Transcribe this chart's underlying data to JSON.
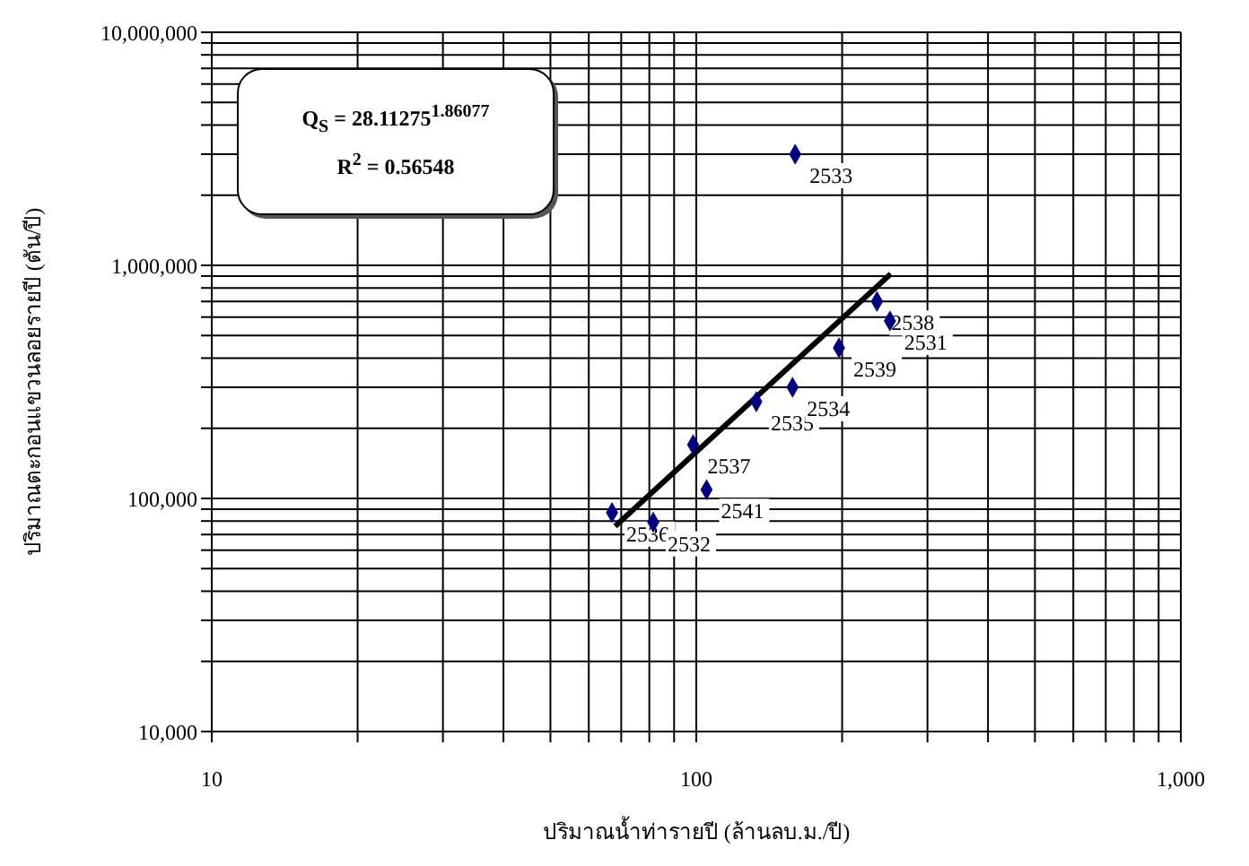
{
  "chart_data": {
    "type": "scatter",
    "log": "xy",
    "xlabel": "ปริมาณน้ำท่ารายปี (ล้านลบ.ม./ปี)",
    "ylabel": "ปริมาณตะกอนแขวนลอยรายปี (ตัน/ปี)",
    "xlim": [
      10,
      1000
    ],
    "ylim": [
      10000,
      10000000
    ],
    "xticks": [
      {
        "value": 10,
        "label": "10"
      },
      {
        "value": 20,
        "label": null
      },
      {
        "value": 30,
        "label": null
      },
      {
        "value": 40,
        "label": null
      },
      {
        "value": 50,
        "label": null
      },
      {
        "value": 60,
        "label": null
      },
      {
        "value": 70,
        "label": null
      },
      {
        "value": 80,
        "label": null
      },
      {
        "value": 90,
        "label": null
      },
      {
        "value": 100,
        "label": "100"
      },
      {
        "value": 200,
        "label": null
      },
      {
        "value": 300,
        "label": null
      },
      {
        "value": 400,
        "label": null
      },
      {
        "value": 500,
        "label": null
      },
      {
        "value": 600,
        "label": null
      },
      {
        "value": 700,
        "label": null
      },
      {
        "value": 800,
        "label": null
      },
      {
        "value": 900,
        "label": null
      },
      {
        "value": 1000,
        "label": "1,000"
      }
    ],
    "yticks": [
      {
        "value": 10000,
        "label": "10,000"
      },
      {
        "value": 20000,
        "label": null
      },
      {
        "value": 30000,
        "label": null
      },
      {
        "value": 40000,
        "label": null
      },
      {
        "value": 50000,
        "label": null
      },
      {
        "value": 60000,
        "label": null
      },
      {
        "value": 70000,
        "label": null
      },
      {
        "value": 80000,
        "label": null
      },
      {
        "value": 90000,
        "label": null
      },
      {
        "value": 100000,
        "label": "100,000"
      },
      {
        "value": 200000,
        "label": null
      },
      {
        "value": 300000,
        "label": null
      },
      {
        "value": 400000,
        "label": null
      },
      {
        "value": 500000,
        "label": null
      },
      {
        "value": 600000,
        "label": null
      },
      {
        "value": 700000,
        "label": null
      },
      {
        "value": 800000,
        "label": null
      },
      {
        "value": 900000,
        "label": null
      },
      {
        "value": 1000000,
        "label": "1,000,000"
      },
      {
        "value": 2000000,
        "label": null
      },
      {
        "value": 3000000,
        "label": null
      },
      {
        "value": 4000000,
        "label": null
      },
      {
        "value": 5000000,
        "label": null
      },
      {
        "value": 6000000,
        "label": null
      },
      {
        "value": 7000000,
        "label": null
      },
      {
        "value": 8000000,
        "label": null
      },
      {
        "value": 9000000,
        "label": null
      },
      {
        "value": 10000000,
        "label": "10,000,000"
      }
    ],
    "grid": true,
    "legend": false,
    "series": [
      {
        "marker": "diamond",
        "color": "#000080",
        "x": [
          67,
          81.5,
          98.5,
          105,
          133,
          158,
          160,
          197,
          236,
          251
        ],
        "values": [
          87000,
          79000,
          170000,
          109000,
          260000,
          300000,
          3000000,
          443000,
          700000,
          578000
        ]
      },
      {
        "type": "line",
        "marker": "none",
        "color": "#000000",
        "x": [
          68,
          252
        ],
        "values": [
          76000,
          920000
        ]
      }
    ],
    "annotations": [
      {
        "text": "2536",
        "x": 67,
        "y": 87000
      },
      {
        "text": "2532",
        "x": 81.5,
        "y": 79000
      },
      {
        "text": "2537",
        "x": 98.5,
        "y": 170000
      },
      {
        "text": "2541",
        "x": 105,
        "y": 109000
      },
      {
        "text": "2535",
        "x": 133,
        "y": 260000
      },
      {
        "text": "2534",
        "x": 158,
        "y": 300000
      },
      {
        "text": "2533",
        "x": 160,
        "y": 3000000
      },
      {
        "text": "2539",
        "x": 197,
        "y": 443000
      },
      {
        "text": "2538",
        "x": 236,
        "y": 700000
      },
      {
        "text": "2531",
        "x": 251,
        "y": 578000
      },
      "Q$_{S}$ = 28.11275$^{1.86077}$",
      "R$^{2}$ = 0.56548"
    ]
  }
}
